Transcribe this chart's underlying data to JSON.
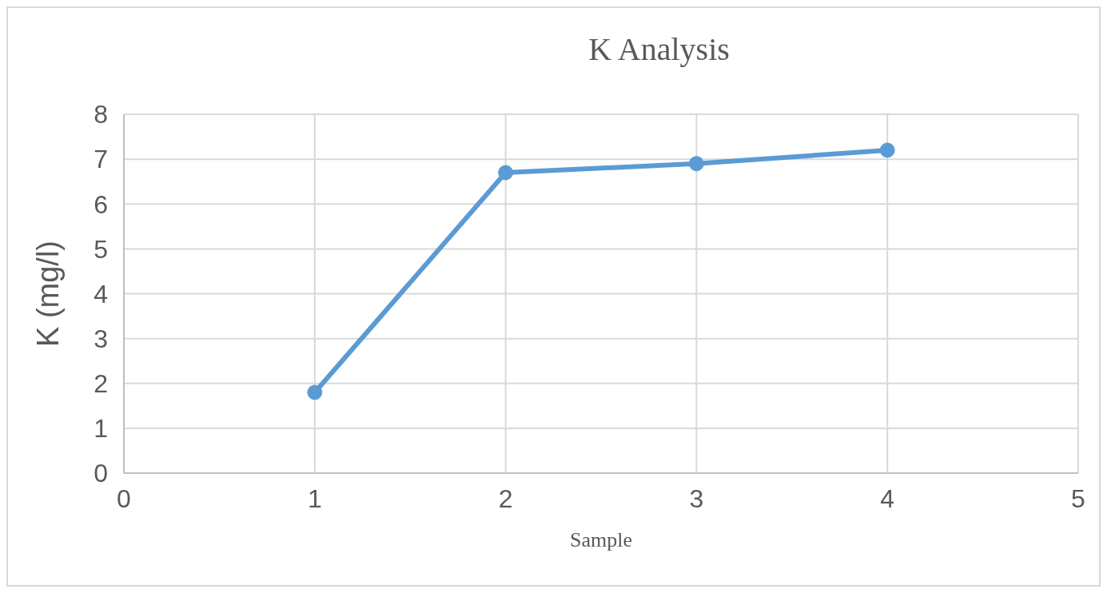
{
  "chart_data": {
    "type": "line",
    "title": "K Analysis",
    "xlabel": "Sample",
    "ylabel": "K (mg/l)",
    "x": [
      1,
      2,
      3,
      4
    ],
    "series": [
      {
        "color": "#5b9bd5",
        "values": [
          1.8,
          6.7,
          6.9,
          7.2
        ]
      }
    ],
    "xlim": [
      0,
      5
    ],
    "xticks": [
      0,
      1,
      2,
      3,
      4,
      5
    ],
    "ylim": [
      0,
      8
    ],
    "yticks": [
      0,
      1,
      2,
      3,
      4,
      5,
      6,
      7,
      8
    ],
    "grid": true,
    "marker": "circle",
    "line_style": "solid",
    "legend": false
  }
}
